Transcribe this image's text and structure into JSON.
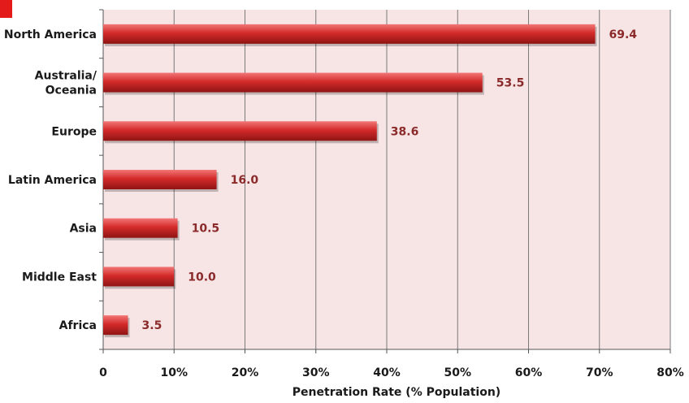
{
  "chart_data": {
    "type": "bar",
    "orientation": "horizontal",
    "categories": [
      "North America",
      "Australia/\nOceania",
      "Europe",
      "Latin America",
      "Asia",
      "Middle East",
      "Africa"
    ],
    "values": [
      69.4,
      53.5,
      38.6,
      16.0,
      10.5,
      10.0,
      3.5
    ],
    "value_labels": [
      "69.4",
      "53.5",
      "38.6",
      "16.0",
      "10.5",
      "10.0",
      "3.5"
    ],
    "title": "",
    "xlabel": "Penetration Rate (% Population)",
    "ylabel": "",
    "xlim": [
      0,
      80
    ],
    "xticks": [
      0,
      10,
      20,
      30,
      40,
      50,
      60,
      70,
      80
    ],
    "xtick_labels": [
      "0",
      "10%",
      "20%",
      "30%",
      "40%",
      "50%",
      "60%",
      "70%",
      "80%"
    ],
    "grid": "vertical",
    "legend": "none"
  },
  "colors": {
    "bar": "#d42a2a",
    "bar_dark": "#8f1414",
    "bar_light": "#f27777",
    "plot_background": "#f7e4e4",
    "gridline": "#7a7a7a",
    "value_text": "#8b2a2a",
    "corner_mark": "#e31b1b"
  }
}
